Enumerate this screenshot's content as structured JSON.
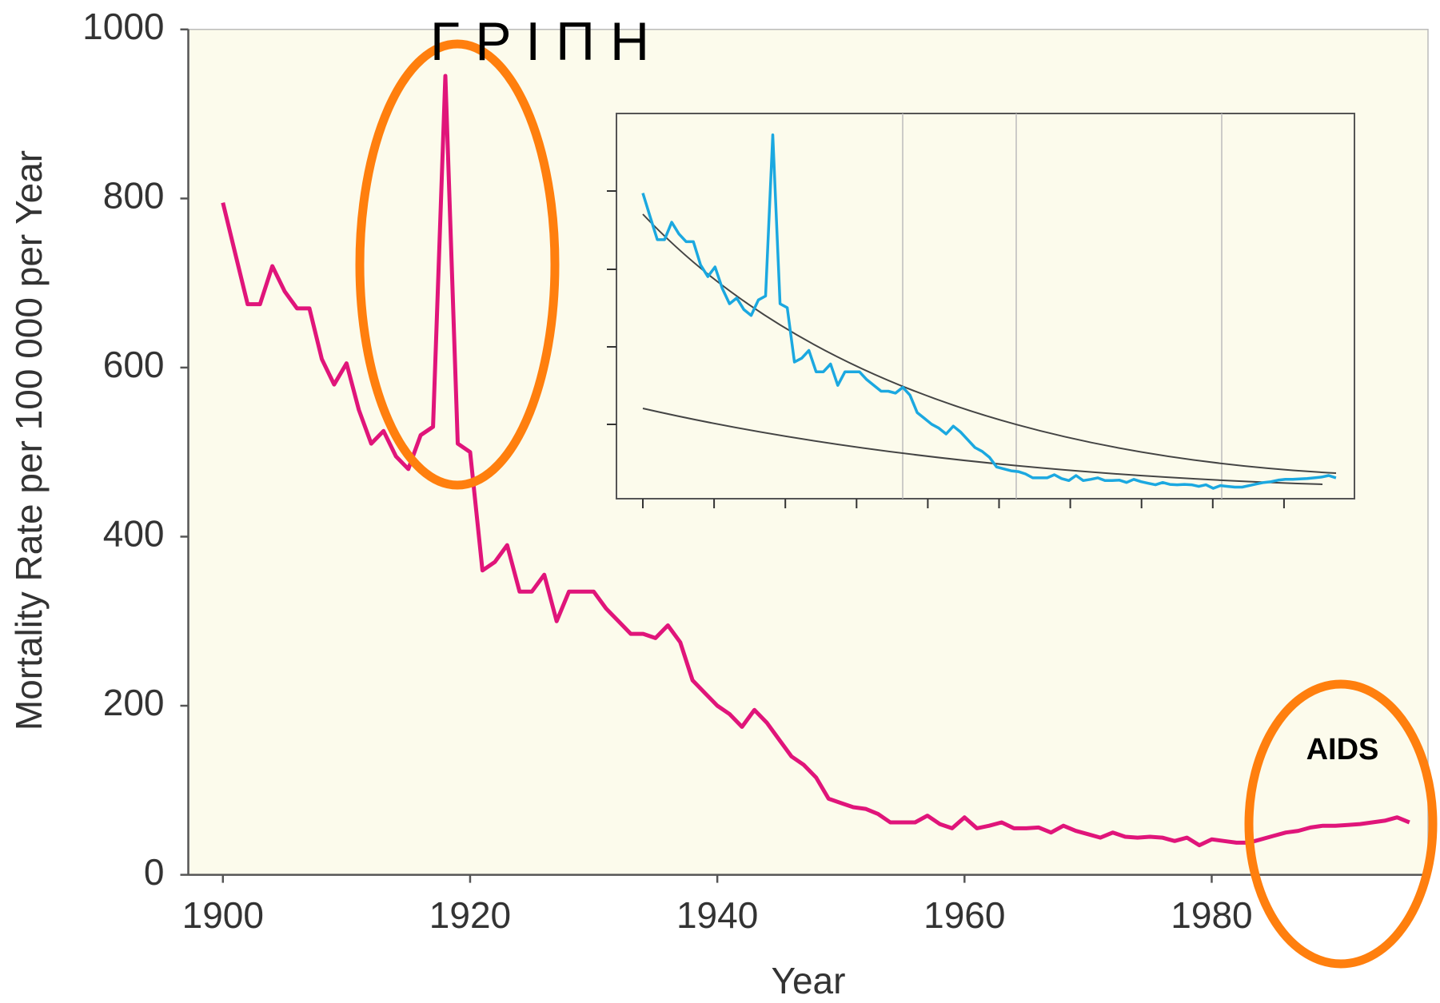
{
  "chart_data": {
    "type": "line",
    "annotations": [
      "Γ Ρ Ι Π Η",
      "AIDS"
    ],
    "x_label": "Year",
    "y_label": "Mortality Rate per 100 000 per Year",
    "x": [
      1900,
      1901,
      1902,
      1903,
      1904,
      1905,
      1906,
      1907,
      1908,
      1909,
      1910,
      1911,
      1912,
      1913,
      1914,
      1915,
      1916,
      1917,
      1918,
      1919,
      1920,
      1921,
      1922,
      1923,
      1924,
      1925,
      1926,
      1927,
      1928,
      1929,
      1930,
      1931,
      1932,
      1933,
      1934,
      1935,
      1936,
      1937,
      1938,
      1939,
      1940,
      1941,
      1942,
      1943,
      1944,
      1945,
      1946,
      1947,
      1948,
      1949,
      1950,
      1951,
      1952,
      1953,
      1954,
      1955,
      1956,
      1957,
      1958,
      1959,
      1960,
      1961,
      1962,
      1963,
      1964,
      1965,
      1966,
      1967,
      1968,
      1969,
      1970,
      1971,
      1972,
      1973,
      1974,
      1975,
      1976,
      1977,
      1978,
      1979,
      1980,
      1981,
      1982,
      1983,
      1984,
      1985,
      1986,
      1987,
      1988,
      1989,
      1990,
      1991,
      1992,
      1993,
      1994,
      1995,
      1996
    ],
    "series": [
      {
        "color": "#e0157a",
        "inset_color": "#1ba8e0",
        "values": [
          795,
          735,
          675,
          675,
          720,
          690,
          670,
          670,
          610,
          580,
          605,
          550,
          510,
          525,
          495,
          480,
          520,
          530,
          945,
          510,
          500,
          360,
          370,
          390,
          335,
          335,
          355,
          300,
          335,
          335,
          335,
          315,
          300,
          285,
          285,
          280,
          295,
          275,
          230,
          215,
          200,
          190,
          175,
          195,
          180,
          160,
          140,
          130,
          115,
          90,
          85,
          80,
          78,
          72,
          62,
          62,
          62,
          70,
          60,
          55,
          68,
          55,
          58,
          62,
          55,
          55,
          56,
          50,
          58,
          52,
          48,
          44,
          50,
          45,
          44,
          45,
          44,
          40,
          44,
          35,
          42,
          40,
          38,
          38,
          42,
          46,
          50,
          52,
          56,
          58,
          58,
          59,
          60,
          62,
          64,
          68,
          62
        ]
      }
    ],
    "xlim": [
      1897.2,
      1997.5
    ],
    "xticks": [
      1900,
      1920,
      1940,
      1960,
      1980
    ],
    "ylim": [
      0,
      1000
    ],
    "yticks": [
      0,
      200,
      400,
      600,
      800,
      1000
    ]
  }
}
